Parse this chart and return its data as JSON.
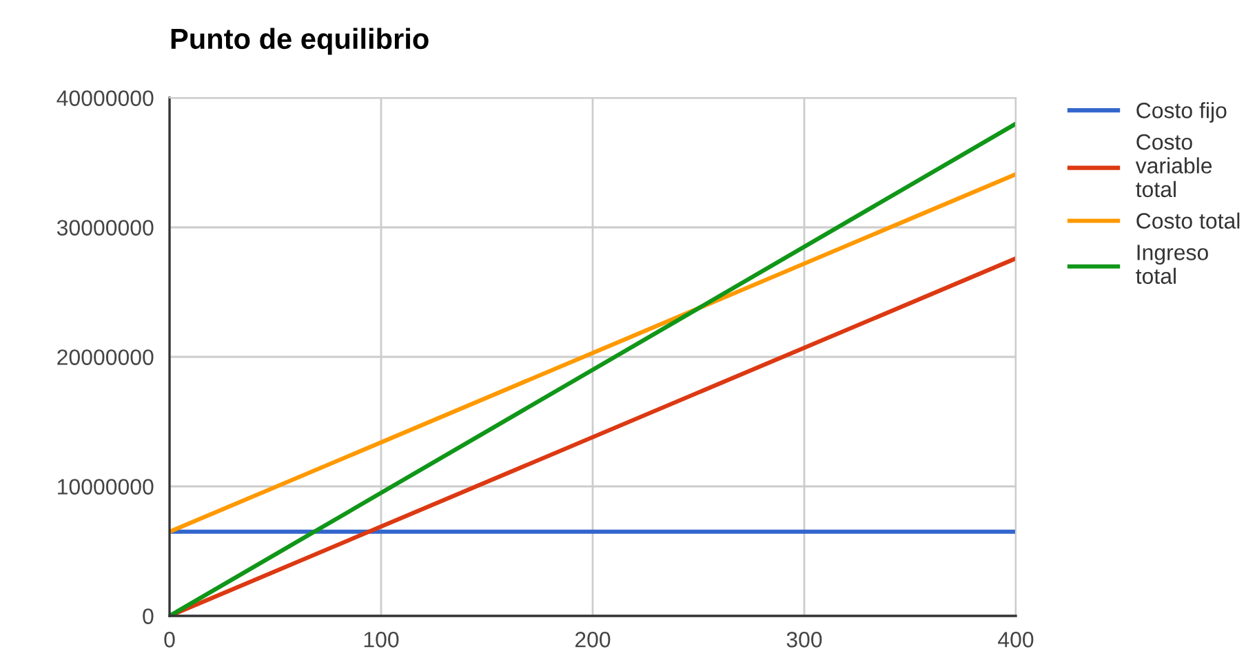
{
  "chart_data": {
    "type": "line",
    "title": "Punto de equilibrio",
    "x": [
      0,
      400
    ],
    "series": [
      {
        "name": "Costo fijo",
        "color": "#3366cc",
        "values": [
          6500000,
          6500000
        ]
      },
      {
        "name": "Costo variable total",
        "color": "#dc3912",
        "values": [
          0,
          27600000
        ]
      },
      {
        "name": "Costo total",
        "color": "#ff9900",
        "values": [
          6500000,
          34100000
        ]
      },
      {
        "name": "Ingreso total",
        "color": "#109618",
        "values": [
          0,
          38000000
        ]
      }
    ],
    "xlim": [
      0,
      400
    ],
    "xticks": [
      0,
      100,
      200,
      300,
      400
    ],
    "ylim": [
      0,
      40000000
    ],
    "yticks": [
      0,
      10000000,
      20000000,
      30000000,
      40000000
    ],
    "grid": true,
    "legend": "top right",
    "marker": "none",
    "line_style": "solid"
  }
}
